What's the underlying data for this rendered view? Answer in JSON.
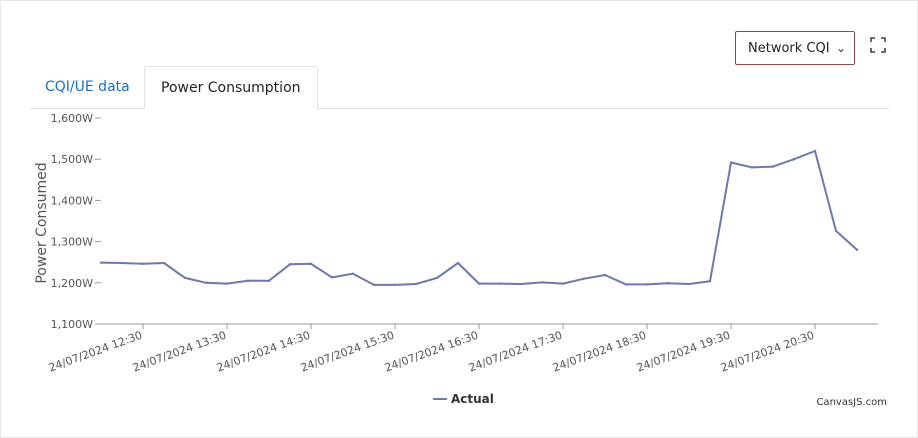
{
  "controls": {
    "select_value": "Network CQI",
    "expand_icon": "expand-icon"
  },
  "tabs": [
    {
      "label": "CQI/UE data",
      "active": false
    },
    {
      "label": "Power Consumption",
      "active": true
    }
  ],
  "watermark": "CanvasJS.com",
  "colors": {
    "line": "#6d78ad",
    "tab_active_text": "#222222",
    "tab_link": "#1a6fc4",
    "axis": "#666666"
  },
  "chart_data": {
    "type": "line",
    "ylabel": "Power Consumed",
    "xlabel": "",
    "ylim": [
      1100,
      1600
    ],
    "y_ticks": [
      1100,
      1200,
      1300,
      1400,
      1500,
      1600
    ],
    "y_tick_labels": [
      "1,100W",
      "1,200W",
      "1,300W",
      "1,400W",
      "1,500W",
      "1,600W"
    ],
    "x_tick_labels": [
      "24/07/2024 12:30",
      "24/07/2024 13:30",
      "24/07/2024 14:30",
      "24/07/2024 15:30",
      "24/07/2024 16:30",
      "24/07/2024 17:30",
      "24/07/2024 18:30",
      "24/07/2024 19:30",
      "24/07/2024 20:30"
    ],
    "x_range": [
      "24/07/2024 12:00",
      "24/07/2024 21:15"
    ],
    "grid": false,
    "legend": "bottom-center",
    "series": [
      {
        "name": "Actual",
        "color": "#6d78ad",
        "x": [
          "24/07/2024 12:00",
          "24/07/2024 12:15",
          "24/07/2024 12:30",
          "24/07/2024 12:45",
          "24/07/2024 13:00",
          "24/07/2024 13:15",
          "24/07/2024 13:30",
          "24/07/2024 13:45",
          "24/07/2024 14:00",
          "24/07/2024 14:15",
          "24/07/2024 14:30",
          "24/07/2024 14:45",
          "24/07/2024 15:00",
          "24/07/2024 15:15",
          "24/07/2024 15:30",
          "24/07/2024 15:45",
          "24/07/2024 16:00",
          "24/07/2024 16:15",
          "24/07/2024 16:30",
          "24/07/2024 16:45",
          "24/07/2024 17:00",
          "24/07/2024 17:15",
          "24/07/2024 17:30",
          "24/07/2024 17:45",
          "24/07/2024 18:00",
          "24/07/2024 18:15",
          "24/07/2024 18:30",
          "24/07/2024 18:45",
          "24/07/2024 19:00",
          "24/07/2024 19:15",
          "24/07/2024 19:30",
          "24/07/2024 19:45",
          "24/07/2024 20:00",
          "24/07/2024 20:15",
          "24/07/2024 20:30",
          "24/07/2024 20:45",
          "24/07/2024 21:00"
        ],
        "values": [
          1249,
          1248,
          1246,
          1248,
          1212,
          1200,
          1198,
          1205,
          1205,
          1245,
          1246,
          1213,
          1222,
          1195,
          1195,
          1197,
          1212,
          1248,
          1198,
          1198,
          1197,
          1201,
          1198,
          1210,
          1219,
          1196,
          1196,
          1199,
          1197,
          1204,
          1492,
          1480,
          1482,
          1500,
          1520,
          1326,
          1280
        ]
      }
    ]
  }
}
